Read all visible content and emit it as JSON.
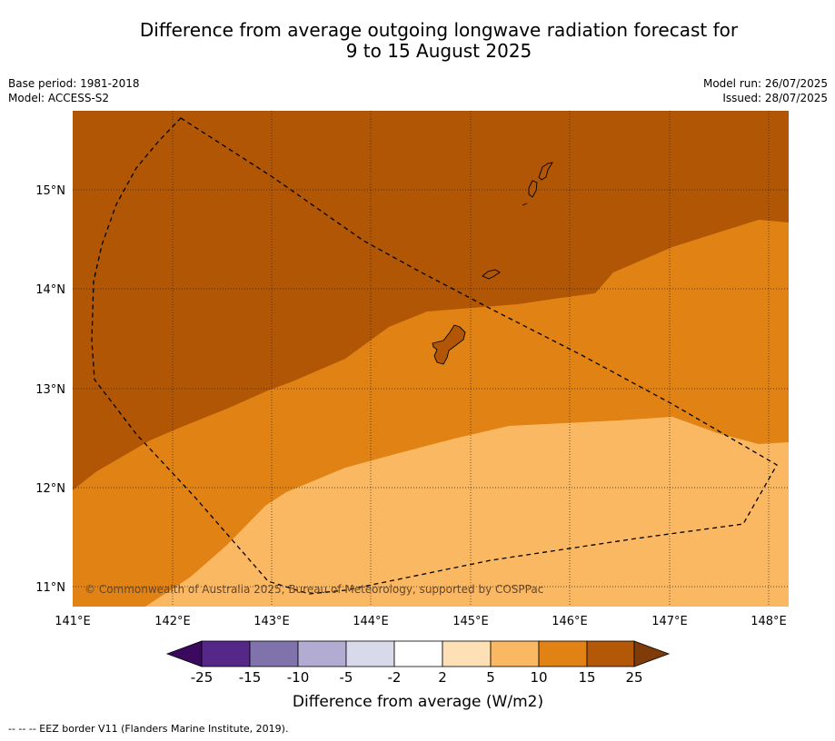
{
  "title_line1": "Difference from average outgoing longwave radiation forecast for",
  "title_line2": "9 to 15 August 2025",
  "base_period": "Base period: 1981-2018",
  "model": "Model: ACCESS-S2",
  "model_run": "Model run: 26/07/2025",
  "issued": "Issued: 28/07/2025",
  "credit": "© Commonwealth of Australia 2025, Bureau of Meteorology, supported by COSPPac",
  "footnote": "--  --  -- EEZ border V11 (Flanders Marine Institute, 2019).",
  "map": {
    "lon_labels": [
      "141°E",
      "142°E",
      "143°E",
      "144°E",
      "145°E",
      "146°E",
      "147°E",
      "148°E"
    ],
    "lat_labels": [
      "15°N",
      "14°N",
      "13°N",
      "12°N",
      "11°N"
    ],
    "features": [
      "Guam",
      "Rota",
      "Tinian",
      "Saipan",
      "EEZ border"
    ],
    "region_colors": {
      "15_to_25": "#b05605",
      "10_to_15": "#e08214",
      "5_to_10": "#fbb863"
    }
  },
  "colorbar": {
    "title": "Difference from average (W/m2)",
    "tick_labels": [
      "-25",
      "-15",
      "-10",
      "-5",
      "-2",
      "2",
      "5",
      "10",
      "15",
      "25"
    ],
    "colors": [
      "#3b0a5e",
      "#542788",
      "#8073ac",
      "#b2abd2",
      "#d8daeb",
      "#ffffff",
      "#fee0b6",
      "#fbb863",
      "#e08214",
      "#b35806",
      "#7f3b08"
    ]
  }
}
